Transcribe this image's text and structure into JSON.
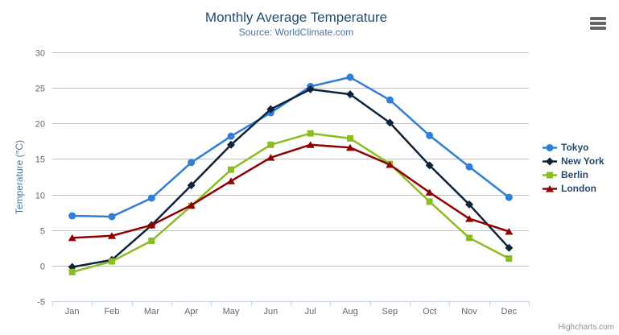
{
  "chart_data": {
    "type": "line",
    "title": "Monthly Average Temperature",
    "subtitle": "Source: WorldClimate.com",
    "ylabel": "Temperature (°C)",
    "xlabel": "",
    "ylim": [
      -5,
      30
    ],
    "ytick_step": 5,
    "grid": true,
    "legend_position": "right",
    "categories": [
      "Jan",
      "Feb",
      "Mar",
      "Apr",
      "May",
      "Jun",
      "Jul",
      "Aug",
      "Sep",
      "Oct",
      "Nov",
      "Dec"
    ],
    "series": [
      {
        "name": "Tokyo",
        "color": "#2f7ed8",
        "marker": "circle",
        "values": [
          7.0,
          6.9,
          9.5,
          14.5,
          18.2,
          21.5,
          25.2,
          26.5,
          23.3,
          18.3,
          13.9,
          9.6
        ]
      },
      {
        "name": "New York",
        "color": "#0d233a",
        "marker": "diamond",
        "values": [
          -0.2,
          0.8,
          5.7,
          11.3,
          17.0,
          22.0,
          24.8,
          24.1,
          20.1,
          14.1,
          8.6,
          2.5
        ]
      },
      {
        "name": "Berlin",
        "color": "#8bbc21",
        "marker": "square",
        "values": [
          -0.9,
          0.6,
          3.5,
          8.4,
          13.5,
          17.0,
          18.6,
          17.9,
          14.3,
          9.0,
          3.9,
          1.0
        ]
      },
      {
        "name": "London",
        "color": "#910000",
        "marker": "triangle",
        "values": [
          3.9,
          4.2,
          5.7,
          8.5,
          11.9,
          15.2,
          17.0,
          16.6,
          14.2,
          10.3,
          6.6,
          4.8
        ]
      }
    ],
    "axis_colors": {
      "grid": "#c0c0c0",
      "axis_line": "#c0d0e0",
      "tick": "#c0d0e0",
      "label": "#666666"
    }
  },
  "credits": "Highcharts.com",
  "icons": {
    "export_menu": "hamburger-icon"
  }
}
